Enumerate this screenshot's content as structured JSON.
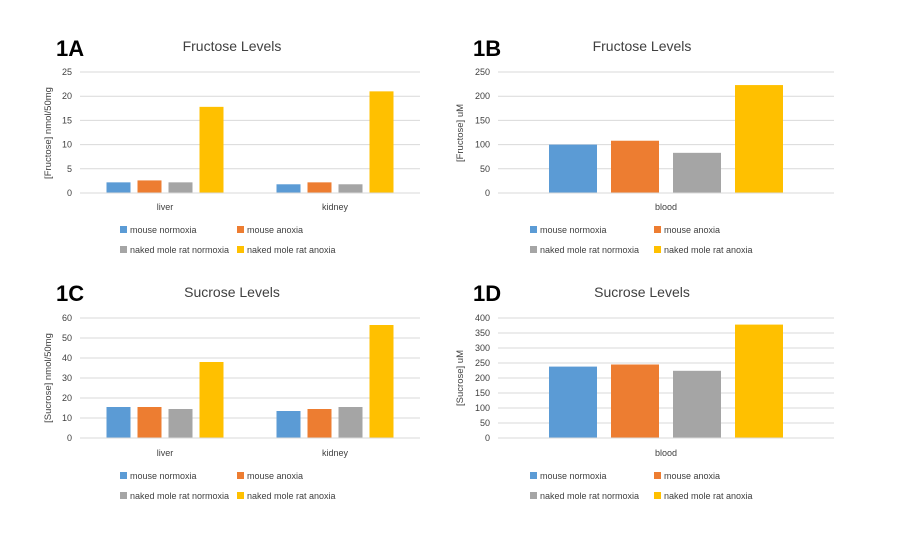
{
  "series_names": [
    "mouse normoxia",
    "mouse anoxia",
    "naked mole rat normoxia",
    "naked mole rat anoxia"
  ],
  "series_colors": [
    "#5b9bd5",
    "#ed7d31",
    "#a5a5a5",
    "#ffc000"
  ],
  "gridline_color": "#d9d9d9",
  "chart_data": [
    {
      "panel": "1A",
      "type": "bar",
      "title": "Fructose Levels",
      "ylabel": "[Fructose] nmol/50mg",
      "ylim": [
        0,
        25
      ],
      "yticks": [
        0,
        5,
        10,
        15,
        20,
        25
      ],
      "categories": [
        "liver",
        "kidney"
      ],
      "series": [
        {
          "name": "mouse normoxia",
          "values": [
            2.2,
            1.8
          ]
        },
        {
          "name": "mouse anoxia",
          "values": [
            2.6,
            2.2
          ]
        },
        {
          "name": "naked mole rat normoxia",
          "values": [
            2.2,
            1.8
          ]
        },
        {
          "name": "naked mole rat anoxia",
          "values": [
            17.8,
            21.0
          ]
        }
      ],
      "legend": "bottom",
      "grid": true
    },
    {
      "panel": "1B",
      "type": "bar",
      "title": "Fructose Levels",
      "ylabel": "[Fructose] uM",
      "ylim": [
        0,
        250
      ],
      "yticks": [
        0,
        50,
        100,
        150,
        200,
        250
      ],
      "categories": [
        "blood"
      ],
      "series": [
        {
          "name": "mouse normoxia",
          "values": [
            100
          ]
        },
        {
          "name": "mouse anoxia",
          "values": [
            108
          ]
        },
        {
          "name": "naked mole rat normoxia",
          "values": [
            83
          ]
        },
        {
          "name": "naked mole rat anoxia",
          "values": [
            223
          ]
        }
      ],
      "legend": "bottom",
      "grid": true
    },
    {
      "panel": "1C",
      "type": "bar",
      "title": "Sucrose Levels",
      "ylabel": "[Sucrose] nmol/50mg",
      "ylim": [
        0,
        60
      ],
      "yticks": [
        0,
        10,
        20,
        30,
        40,
        50,
        60
      ],
      "categories": [
        "liver",
        "kidney"
      ],
      "series": [
        {
          "name": "mouse normoxia",
          "values": [
            15.5,
            13.5
          ]
        },
        {
          "name": "mouse anoxia",
          "values": [
            15.5,
            14.5
          ]
        },
        {
          "name": "naked mole rat normoxia",
          "values": [
            14.5,
            15.5
          ]
        },
        {
          "name": "naked mole rat anoxia",
          "values": [
            38.0,
            56.5
          ]
        }
      ],
      "legend": "bottom",
      "grid": true
    },
    {
      "panel": "1D",
      "type": "bar",
      "title": "Sucrose Levels",
      "ylabel": "[Sucrose] uM",
      "ylim": [
        0,
        400
      ],
      "yticks": [
        0,
        50,
        100,
        150,
        200,
        250,
        300,
        350,
        400
      ],
      "categories": [
        "blood"
      ],
      "series": [
        {
          "name": "mouse normoxia",
          "values": [
            238
          ]
        },
        {
          "name": "mouse anoxia",
          "values": [
            245
          ]
        },
        {
          "name": "naked mole rat normoxia",
          "values": [
            224
          ]
        },
        {
          "name": "naked mole rat anoxia",
          "values": [
            378
          ]
        }
      ],
      "legend": "bottom",
      "grid": true
    }
  ]
}
